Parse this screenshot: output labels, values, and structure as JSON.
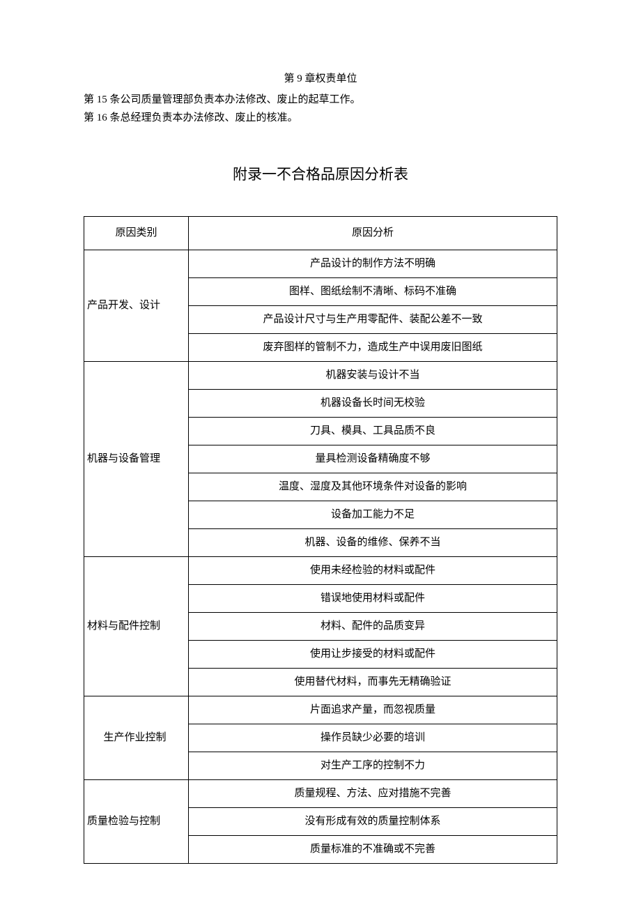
{
  "chapter_title": "第 9 章权责单位",
  "clauses": [
    "第 15 条公司质量管理部负责本办法修改、废止的起草工作。",
    "第 16 条总经理负责本办法修改、废止的核准。"
  ],
  "appendix_title": "附录一不合格品原因分析表",
  "table": {
    "headers": {
      "category": "原因类别",
      "analysis": "原因分析"
    },
    "groups": [
      {
        "category": "产品开发、设计",
        "category_align": "left",
        "items": [
          "产品设计的制作方法不明确",
          "图样、图纸绘制不清晰、标码不准确",
          "产品设计尺寸与生产用零配件、装配公差不一致",
          "废弃图样的管制不力，造成生产中误用废旧图纸"
        ]
      },
      {
        "category": "机器与设备管理",
        "category_align": "left",
        "items": [
          "机器安装与设计不当",
          "机器设备长时间无校验",
          "刀具、模具、工具品质不良",
          "量具检测设备精确度不够",
          "温度、湿度及其他环境条件对设备的影响",
          "设备加工能力不足",
          "机器、设备的维修、保养不当"
        ]
      },
      {
        "category": "材料与配件控制",
        "category_align": "left",
        "items": [
          "使用未经检验的材料或配件",
          "错误地使用材料或配件",
          "材料、配件的品质变异",
          "使用让步接受的材料或配件",
          "使用替代材料，而事先无精确验证"
        ]
      },
      {
        "category": "生产作业控制",
        "category_align": "center",
        "items": [
          "片面追求产量，而忽视质量",
          "操作员缺少必要的培训",
          "对生产工序的控制不力"
        ]
      },
      {
        "category": "质量检验与控制",
        "category_align": "left",
        "items": [
          "质量规程、方法、应对措施不完善",
          "没有形成有效的质量控制体系",
          "质量标准的不准确或不完善"
        ]
      }
    ]
  }
}
